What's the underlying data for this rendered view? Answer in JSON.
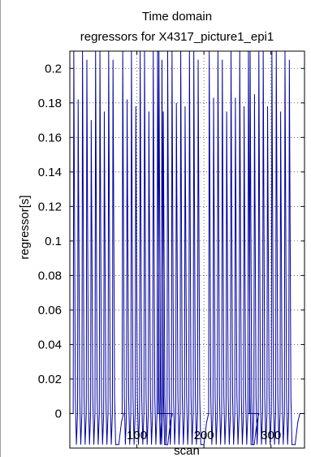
{
  "chart_data": {
    "type": "line",
    "title_lines": [
      "Time domain",
      "regressors for X4317_picture1_epi1"
    ],
    "xlabel": "scan",
    "ylabel": "regressor[s]",
    "xlim": [
      0,
      350
    ],
    "ylim": [
      -0.02,
      0.21
    ],
    "x_ticks": [
      100,
      200,
      300
    ],
    "x_tick_labels": [
      "100",
      "200",
      "300"
    ],
    "y_ticks": [
      0,
      0.02,
      0.04,
      0.06,
      0.08,
      0.1,
      0.12,
      0.14,
      0.16,
      0.18,
      0.2
    ],
    "y_tick_labels": [
      "0",
      "0.02",
      "0.04",
      "0.06",
      "0.08",
      "0.1",
      "0.12",
      "0.14",
      "0.16",
      "0.18",
      "0.2"
    ],
    "grid": true,
    "series": [
      {
        "color": "#0000a0",
        "pulse_blocks": [
          {
            "start": 5,
            "period": 6.5,
            "count": 10,
            "peaks": [
              0.21,
              0.182,
              0.21,
              0.205,
              0.17,
              0.21,
              0.21,
              0.175,
              0.21,
              0.205
            ]
          },
          {
            "start": 78,
            "period": 6.5,
            "count": 10,
            "peaks": [
              0.21,
              0.182,
              0.21,
              0.178,
              0.21,
              0.21,
              0.175,
              0.21,
              0.21,
              0.205
            ]
          },
          {
            "start": 132,
            "period": 6.5,
            "count": 10,
            "peaks": [
              0.21,
              0.175,
              0.21,
              0.21,
              0.18,
              0.21,
              0.178,
              0.21,
              0.21,
              0.205
            ]
          },
          {
            "start": 207,
            "period": 6.5,
            "count": 10,
            "peaks": [
              0.21,
              0.183,
              0.21,
              0.205,
              0.175,
              0.21,
              0.183,
              0.21,
              0.178,
              0.21
            ]
          },
          {
            "start": 268,
            "period": 6.5,
            "count": 10,
            "peaks": [
              0.21,
              0.185,
              0.21,
              0.21,
              0.178,
              0.21,
              0.21,
              0.175,
              0.21,
              0.205
            ]
          }
        ],
        "trough": -0.018
      }
    ]
  }
}
